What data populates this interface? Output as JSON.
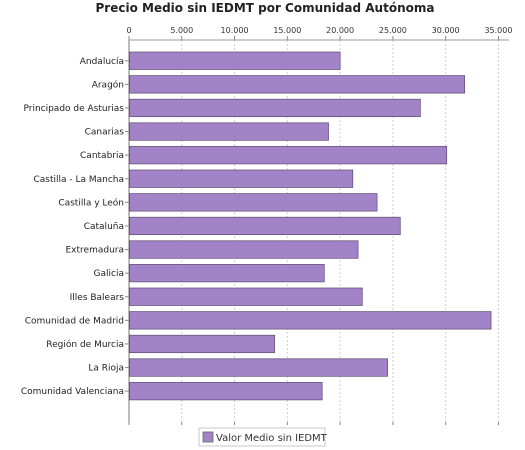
{
  "chart_data": {
    "type": "bar",
    "orientation": "horizontal",
    "title": "Precio Medio sin IEDMT por Comunidad Autónoma",
    "xlabel": "",
    "ylabel": "",
    "xlim": [
      0,
      36000
    ],
    "xticks": [
      0,
      5000,
      10000,
      15000,
      20000,
      25000,
      30000,
      35000
    ],
    "xtick_labels": [
      "0",
      "5.000",
      "10.000",
      "15.000",
      "20.000",
      "25.000",
      "30.000",
      "35.000"
    ],
    "grid": "vertical dashed",
    "legend_position": "bottom",
    "categories": [
      "Andalucía",
      "Aragón",
      "Principado de Asturias",
      "Canarias",
      "Cantabria",
      "Castilla - La Mancha",
      "Castilla y León",
      "Cataluña",
      "Extremadura",
      "Galicia",
      "Illes Balears",
      "Comunidad de Madrid",
      "Región de Murcia",
      "La Rioja",
      "Comunidad Valenciana"
    ],
    "series": [
      {
        "name": "Valor Medio sin IEDMT",
        "color": "#a383c8",
        "values": [
          20000,
          31800,
          27600,
          18900,
          30100,
          21200,
          23500,
          25700,
          21700,
          18500,
          22100,
          34300,
          13800,
          24500,
          18300
        ]
      }
    ]
  }
}
